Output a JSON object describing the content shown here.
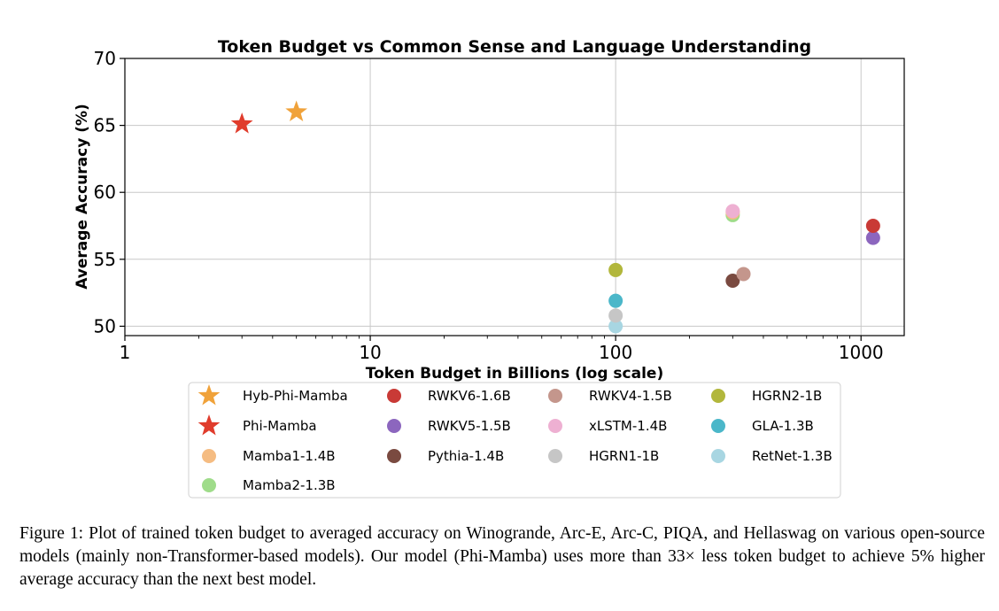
{
  "chart_data": {
    "type": "scatter",
    "title": "Token Budget vs Common Sense and Language Understanding",
    "xlabel": "Token Budget in Billions (log scale)",
    "ylabel": "Average Accuracy (%)",
    "xscale": "log",
    "xlim": [
      1,
      1500
    ],
    "ylim": [
      49.3,
      70
    ],
    "xticks": [
      1,
      10,
      100,
      1000
    ],
    "xtick_labels": [
      "1",
      "10",
      "100",
      "1000"
    ],
    "yticks": [
      50,
      55,
      60,
      65,
      70
    ],
    "ytick_labels": [
      "50",
      "55",
      "60",
      "65",
      "70"
    ],
    "grid": true,
    "legend_placement": "below plot, 4 columns",
    "series": [
      {
        "name": "Hyb-Phi-Mamba",
        "marker": "star",
        "color": "#f0a23a",
        "x": 5,
        "y": 66.0
      },
      {
        "name": "Phi-Mamba",
        "marker": "star",
        "color": "#e03c2c",
        "x": 3,
        "y": 65.1
      },
      {
        "name": "Mamba1-1.4B",
        "marker": "circle",
        "color": "#f5bc82",
        "x": 300,
        "y": 58.5
      },
      {
        "name": "Mamba2-1.3B",
        "marker": "circle",
        "color": "#9fdc8a",
        "x": 300,
        "y": 58.3
      },
      {
        "name": "RWKV6-1.6B",
        "marker": "circle",
        "color": "#c93a36",
        "x": 1120,
        "y": 57.5
      },
      {
        "name": "RWKV5-1.5B",
        "marker": "circle",
        "color": "#8c66be",
        "x": 1120,
        "y": 56.6
      },
      {
        "name": "Pythia-1.4B",
        "marker": "circle",
        "color": "#7a4a40",
        "x": 300,
        "y": 53.4
      },
      {
        "name": "RWKV4-1.5B",
        "marker": "circle",
        "color": "#c4968c",
        "x": 332,
        "y": 53.9
      },
      {
        "name": "xLSTM-1.4B",
        "marker": "circle",
        "color": "#eeb0d2",
        "x": 300,
        "y": 58.6
      },
      {
        "name": "HGRN1-1B",
        "marker": "circle",
        "color": "#c6c6c6",
        "x": 100,
        "y": 50.8
      },
      {
        "name": "HGRN2-1B",
        "marker": "circle",
        "color": "#b2b73c",
        "x": 100,
        "y": 54.2
      },
      {
        "name": "GLA-1.3B",
        "marker": "circle",
        "color": "#4bb7c9",
        "x": 100,
        "y": 51.9
      },
      {
        "name": "RetNet-1.3B",
        "marker": "circle",
        "color": "#a8d6e2",
        "x": 100,
        "y": 50.0
      }
    ],
    "legend_order": [
      "Hyb-Phi-Mamba",
      "RWKV6-1.6B",
      "RWKV4-1.5B",
      "HGRN2-1B",
      "Phi-Mamba",
      "RWKV5-1.5B",
      "xLSTM-1.4B",
      "GLA-1.3B",
      "Mamba1-1.4B",
      "Pythia-1.4B",
      "HGRN1-1B",
      "RetNet-1.3B",
      "Mamba2-1.3B"
    ]
  },
  "caption": "Figure 1: Plot of trained token budget to averaged accuracy on Winogrande, Arc-E, Arc-C, PIQA, and Hellaswag on various open-source models (mainly non-Transformer-based models). Our model (Phi-Mamba) uses more than 33× less token budget to achieve 5% higher average accuracy than the next best model."
}
